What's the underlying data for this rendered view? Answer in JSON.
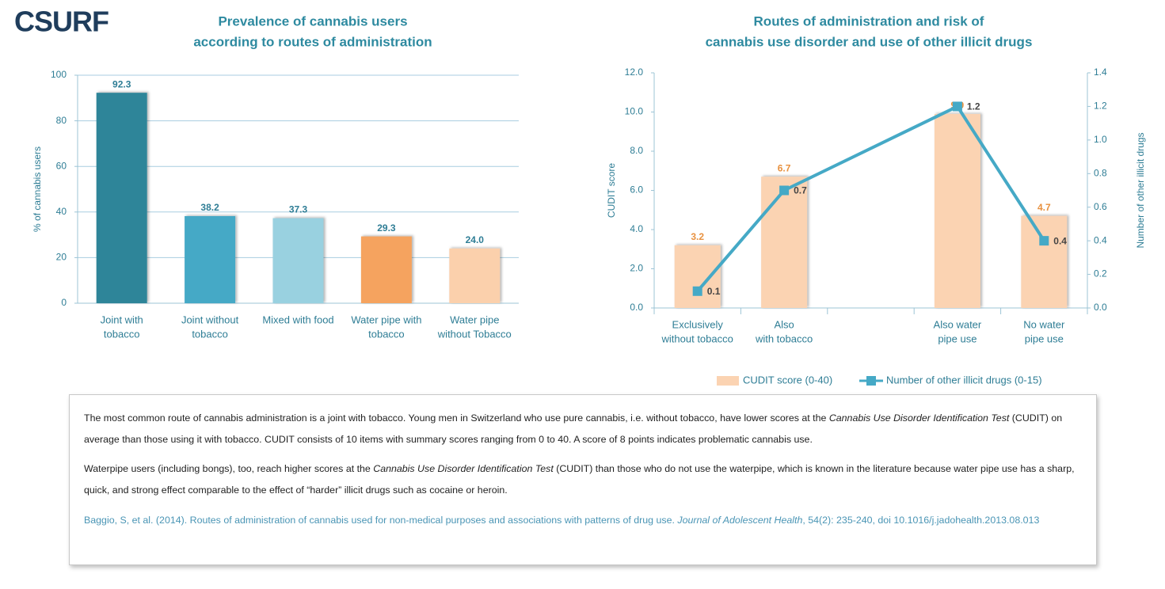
{
  "logo": "CSURF",
  "chart_data": [
    {
      "type": "bar",
      "title": [
        "Prevalence of cannabis users",
        "according to routes of administration"
      ],
      "ylabel": "% of cannabis users",
      "categories": [
        [
          "Joint with",
          "tobacco"
        ],
        [
          "Joint without",
          "tobacco"
        ],
        [
          "Mixed with food"
        ],
        [
          "Water pipe with",
          "tobacco"
        ],
        [
          "Water pipe",
          "without Tobacco"
        ]
      ],
      "values": [
        92.3,
        38.2,
        37.3,
        29.3,
        24.0
      ],
      "value_labels": [
        "92.3",
        "38.2",
        "37.3",
        "29.3",
        "24.0"
      ],
      "colors": [
        "#2e8599",
        "#45a9c6",
        "#99d1e0",
        "#f5a35e",
        "#fbd0ac"
      ],
      "ylim": [
        0,
        100
      ],
      "yticks": [
        0,
        20,
        40,
        60,
        80,
        100
      ],
      "grid": true
    },
    {
      "type": "combo",
      "title": [
        "Routes of administration and risk of",
        "cannabis use disorder and use of other illicit drugs"
      ],
      "ylabel": "CUDIT score",
      "y2label": "Number of other illicit  drugs",
      "categories": [
        [
          "Exclusively",
          "without tobacco"
        ],
        [
          "Also",
          "with tobacco"
        ],
        null,
        [
          "Also water",
          "pipe use"
        ],
        [
          "No water",
          "pipe use"
        ]
      ],
      "series": [
        {
          "name": "CUDIT score (0-40)",
          "type": "bar",
          "color": "#fbd3b2",
          "label_color": "#e8913f",
          "values": [
            3.2,
            6.7,
            null,
            9.9,
            4.7
          ]
        },
        {
          "name": "Number of other illicit  drugs  (0-15)",
          "type": "line",
          "axis": "y2",
          "color": "#45a9c6",
          "label_color": "#444444",
          "connect_gaps": true,
          "values": [
            0.1,
            0.7,
            null,
            1.2,
            0.4
          ]
        }
      ],
      "ylim": [
        0,
        12
      ],
      "yticks": [
        {
          "value": 0,
          "label": "0.0"
        },
        {
          "value": 2,
          "label": "2.0"
        },
        {
          "value": 4,
          "label": "4.0"
        },
        {
          "value": 6,
          "label": "6.0"
        },
        {
          "value": 8,
          "label": "8.0"
        },
        {
          "value": 10,
          "label": "10.0"
        },
        {
          "value": 12,
          "label": "12.0"
        }
      ],
      "y2lim": [
        0,
        1.4
      ],
      "y2ticks": [
        {
          "value": 0,
          "label": "0.0"
        },
        0.2,
        0.4,
        0.6,
        0.8,
        {
          "value": 1,
          "label": "1.0"
        },
        1.2,
        1.4
      ],
      "grid": false,
      "category_ticks": true,
      "legend": "bottom"
    }
  ],
  "text_box": {
    "paragraphs": [
      [
        {
          "text": "The most common route of cannabis administration is a joint with tobacco. Young men in Switzerland who use pure cannabis, i.e. without tobacco, have lower scores at the "
        },
        {
          "text": "Cannabis Use Disorder Identification Test",
          "italic": true
        },
        {
          "text": " (CUDIT) on average than those using it with tobacco.  CUDIT consists of 10 items with summary scores ranging from 0 to 40. A score of 8 points indicates problematic cannabis use."
        }
      ],
      [
        {
          "text": "Waterpipe users (including bongs), too, reach higher scores at the "
        },
        {
          "text": "Cannabis Use Disorder Identification Test",
          "italic": true
        },
        {
          "text": " (CUDIT) than those who do not use the waterpipe, which is known in the literature because water pipe use has a sharp, quick, and strong effect comparable to the effect of “harder” illicit drugs such as cocaine or heroin."
        }
      ]
    ],
    "citation": [
      {
        "text": "Baggio, S, et al. (2014).  Routes of administration of cannabis used for non-medical purposes and associations with patterns of drug use. "
      },
      {
        "text": "Journal of Adolescent Health",
        "italic": true
      },
      {
        "text": ", 54(2): 235-240, doi 10.1016/j.jadohealth.2013.08.013"
      }
    ]
  }
}
